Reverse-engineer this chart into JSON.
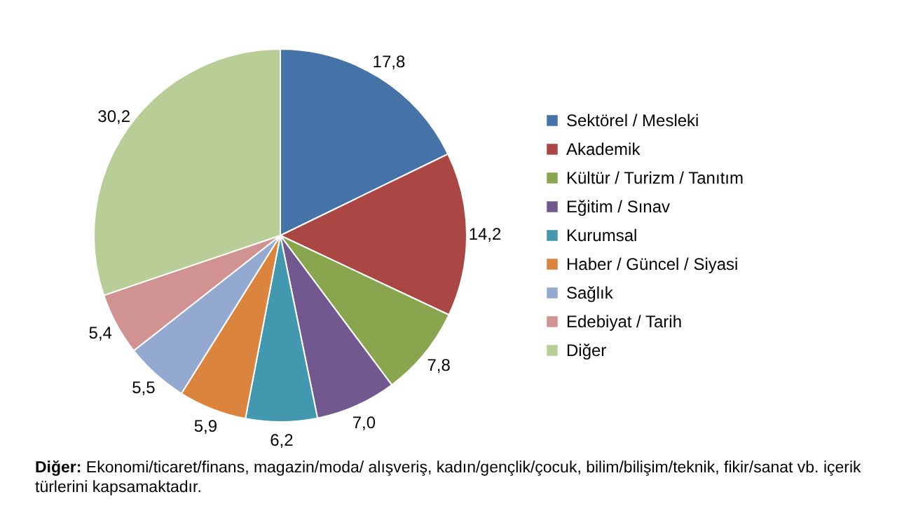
{
  "chart_data": {
    "type": "pie",
    "categories": [
      "Sektörel / Mesleki",
      "Akademik",
      "Kültür / Turizm / Tanıtım",
      "Eğitim / Sınav",
      "Kurumsal",
      "Haber / Güncel / Siyasi",
      "Sağlık",
      "Edebiyat / Tarih",
      "Diğer"
    ],
    "values": [
      17.8,
      14.2,
      7.8,
      7.0,
      6.2,
      5.9,
      5.5,
      5.4,
      30.2
    ],
    "value_labels": [
      "17,8",
      "14,2",
      "7,8",
      "7,0",
      "6,2",
      "5,9",
      "5,5",
      "5,4",
      "30,2"
    ],
    "colors": [
      "#4572a7",
      "#aa4643",
      "#89a54e",
      "#71588f",
      "#4198af",
      "#db843d",
      "#93a9cf",
      "#d19392",
      "#b9cd96"
    ],
    "legend": "right",
    "annotations": [
      "Diğer: Ekonomi/ticaret/finans, magazin/moda/ alışveriş, kadın/gençlik/çocuk, bilim/bilişim/teknik, fikir/sanat vb. içerik türlerini kapsamaktadır."
    ]
  }
}
